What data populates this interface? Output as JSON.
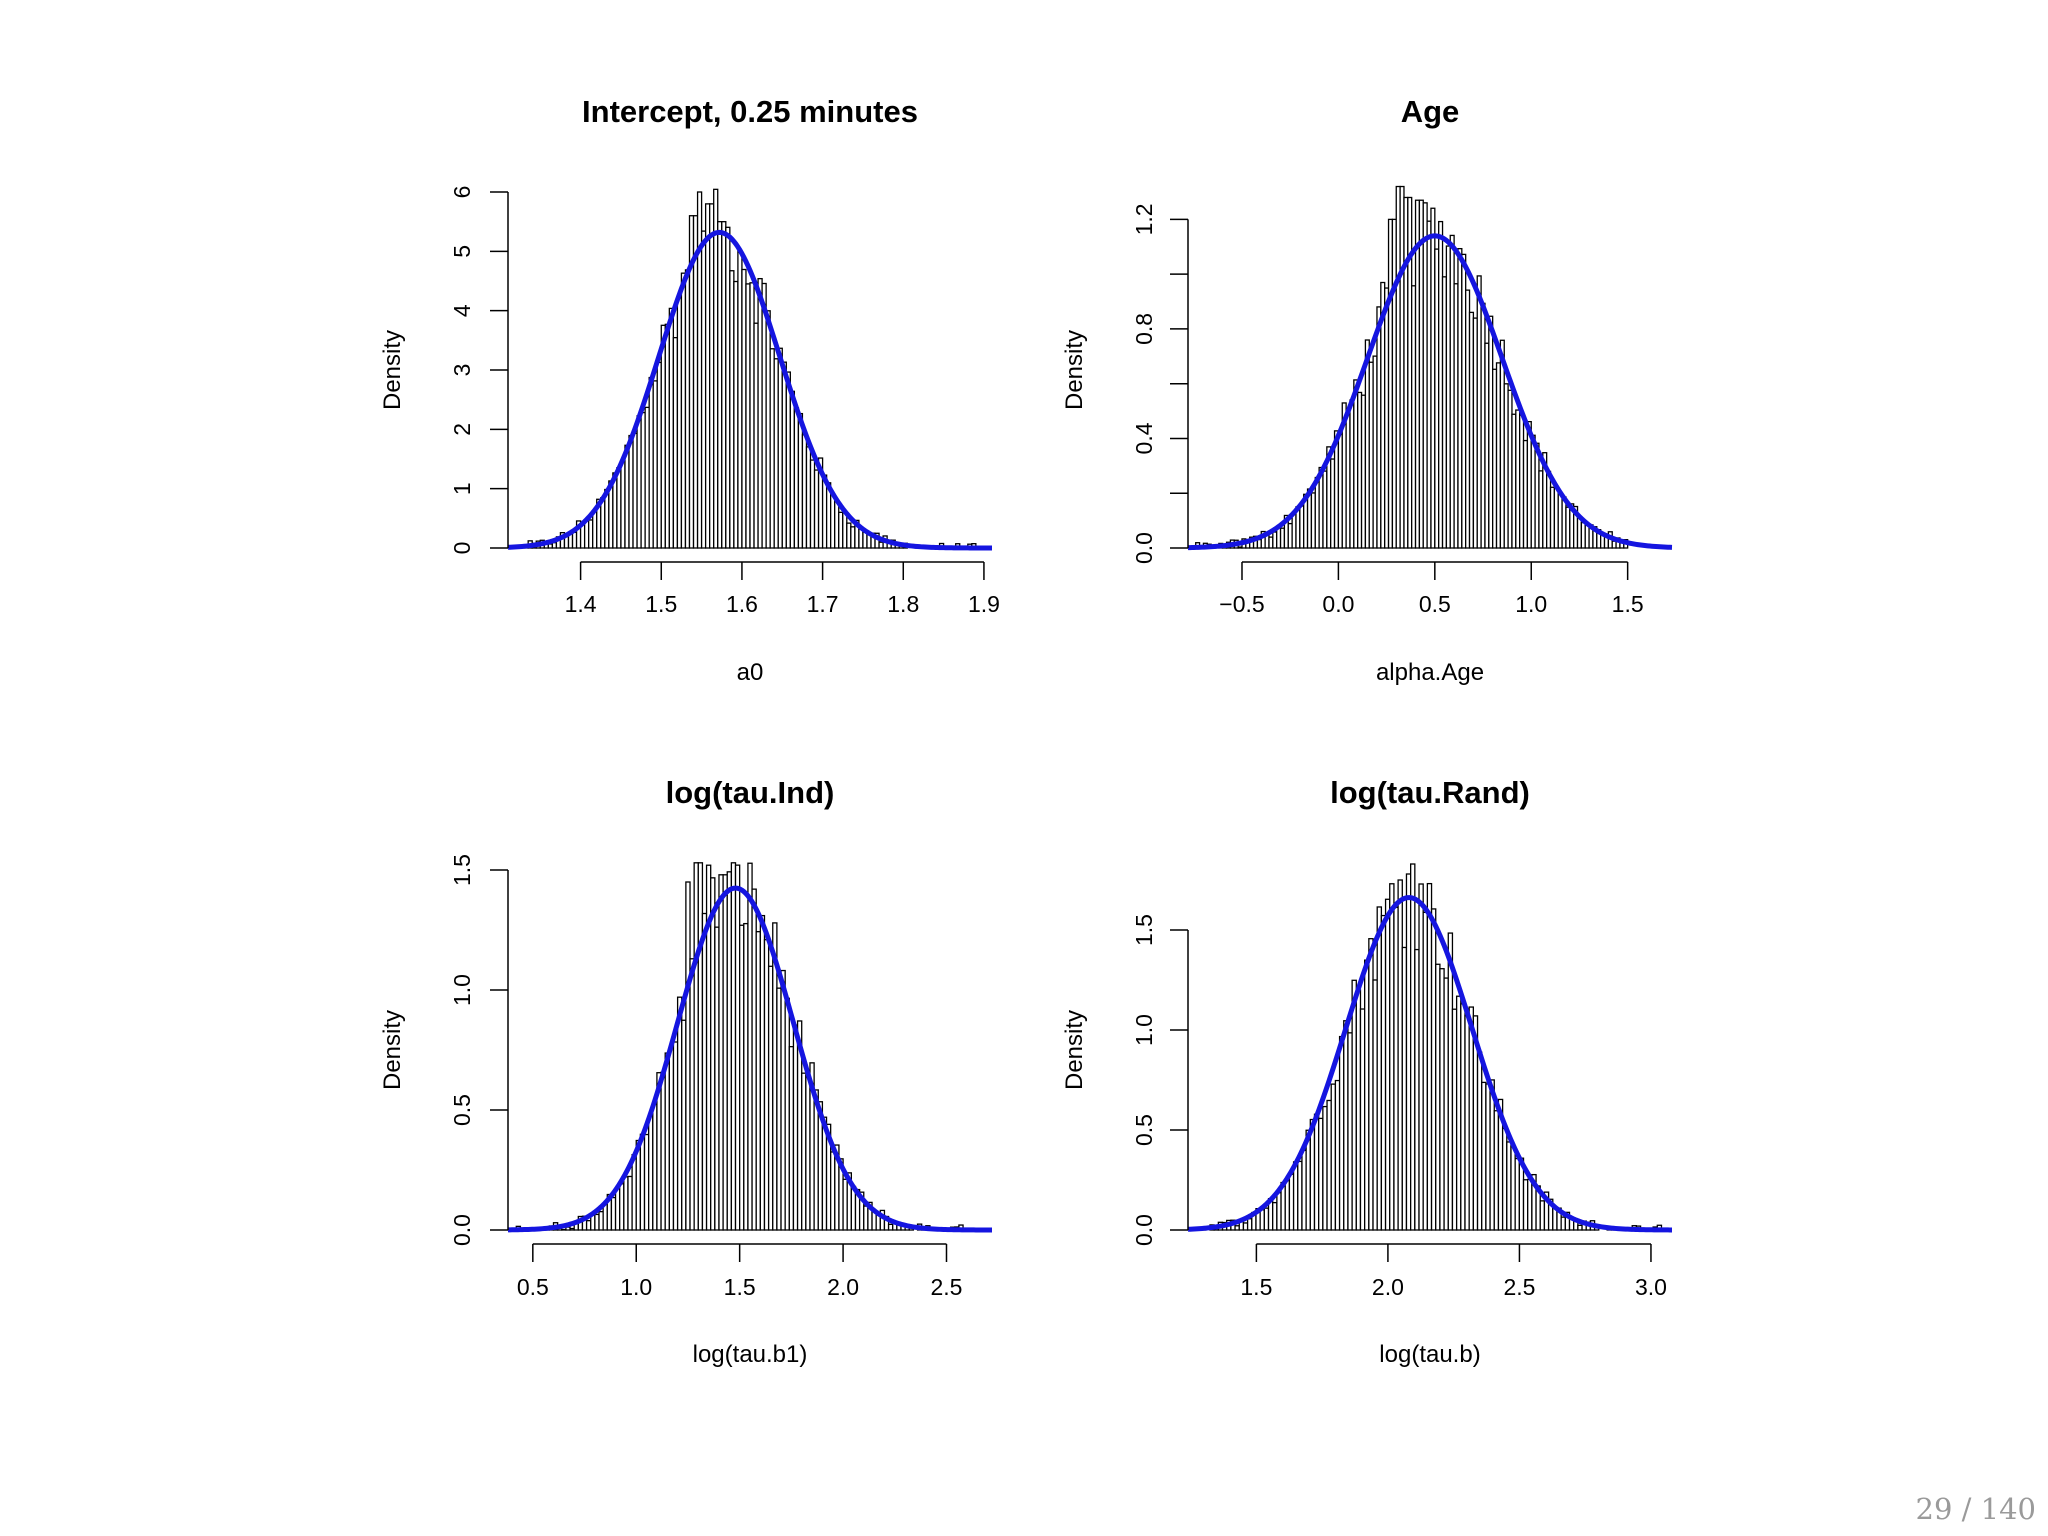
{
  "page": {
    "current": "29",
    "separator": "/",
    "total": "140"
  },
  "chart_data": [
    {
      "type": "histogram",
      "title": "Intercept, 0.25 minutes",
      "xlabel": "a0",
      "ylabel": "Density",
      "xlim": [
        1.31,
        1.91
      ],
      "ylim": [
        0,
        6
      ],
      "xticks": [
        1.4,
        1.5,
        1.6,
        1.7,
        1.8,
        1.9
      ],
      "xtick_labels": [
        "1.4",
        "1.5",
        "1.6",
        "1.7",
        "1.8",
        "1.9"
      ],
      "yticks": [
        0,
        1,
        2,
        3,
        4,
        5,
        6
      ],
      "ytick_labels": [
        "0",
        "1",
        "2",
        "3",
        "4",
        "5",
        "6"
      ],
      "bins": {
        "start": 1.33,
        "end": 1.89,
        "count": 112
      },
      "curve": {
        "mean": 1.572,
        "sd": 0.075,
        "color": "#1515e0"
      },
      "peaks": [
        [
          1.545,
          6.0
        ],
        [
          1.56,
          5.8
        ],
        [
          1.54,
          5.6
        ],
        [
          1.575,
          5.5
        ]
      ],
      "bar_color": "#ffffff"
    },
    {
      "type": "histogram",
      "title": "Age",
      "xlabel": "alpha.Age",
      "ylabel": "Density",
      "xlim": [
        -0.78,
        1.73
      ],
      "ylim": [
        0,
        1.3
      ],
      "xticks": [
        -0.5,
        0.0,
        0.5,
        1.0,
        1.5
      ],
      "xtick_labels": [
        "−0.5",
        "0.0",
        "0.5",
        "1.0",
        "1.5"
      ],
      "yticks": [
        0,
        0.2,
        0.4,
        0.6,
        0.8,
        1.0,
        1.2
      ],
      "ytick_labels": [
        "0.0",
        "",
        "0.4",
        "",
        "0.8",
        "",
        "1.2"
      ],
      "bins": {
        "start": -0.74,
        "end": 1.5,
        "count": 112
      },
      "curve": {
        "mean": 0.5,
        "sd": 0.35,
        "color": "#1515e0"
      },
      "peaks": [
        [
          0.32,
          1.32
        ],
        [
          0.36,
          1.28
        ],
        [
          0.42,
          1.27
        ],
        [
          0.28,
          1.2
        ]
      ],
      "bar_color": "#ffffff"
    },
    {
      "type": "histogram",
      "title": "log(tau.Ind)",
      "xlabel": "log(tau.b1)",
      "ylabel": "Density",
      "xlim": [
        0.38,
        2.72
      ],
      "ylim": [
        0,
        1.5
      ],
      "xticks": [
        0.5,
        1.0,
        1.5,
        2.0,
        2.5
      ],
      "xtick_labels": [
        "0.5",
        "1.0",
        "1.5",
        "2.0",
        "2.5"
      ],
      "yticks": [
        0,
        0.5,
        1.0,
        1.5
      ],
      "ytick_labels": [
        "0.0",
        "0.5",
        "1.0",
        "1.5"
      ],
      "bins": {
        "start": 0.4,
        "end": 2.7,
        "count": 115
      },
      "curve": {
        "mean": 1.48,
        "sd": 0.28,
        "color": "#1515e0"
      },
      "peaks": [
        [
          1.3,
          1.53
        ],
        [
          1.35,
          1.52
        ],
        [
          1.25,
          1.45
        ],
        [
          1.42,
          1.48
        ]
      ],
      "bar_color": "#ffffff"
    },
    {
      "type": "histogram",
      "title": "log(tau.Rand)",
      "xlabel": "log(tau.b)",
      "ylabel": "Density",
      "xlim": [
        1.24,
        3.08
      ],
      "ylim": [
        0,
        1.8
      ],
      "xticks": [
        1.5,
        2.0,
        2.5,
        3.0
      ],
      "xtick_labels": [
        "1.5",
        "2.0",
        "2.5",
        "3.0"
      ],
      "yticks": [
        0,
        0.5,
        1.0,
        1.5
      ],
      "ytick_labels": [
        "0.0",
        "0.5",
        "1.0",
        "1.5"
      ],
      "bins": {
        "start": 1.26,
        "end": 3.04,
        "count": 112
      },
      "curve": {
        "mean": 2.08,
        "sd": 0.24,
        "color": "#1515e0"
      },
      "peaks": [
        [
          2.1,
          1.83
        ],
        [
          2.08,
          1.78
        ],
        [
          2.05,
          1.75
        ],
        [
          2.13,
          1.73
        ]
      ],
      "bar_color": "#ffffff"
    }
  ]
}
